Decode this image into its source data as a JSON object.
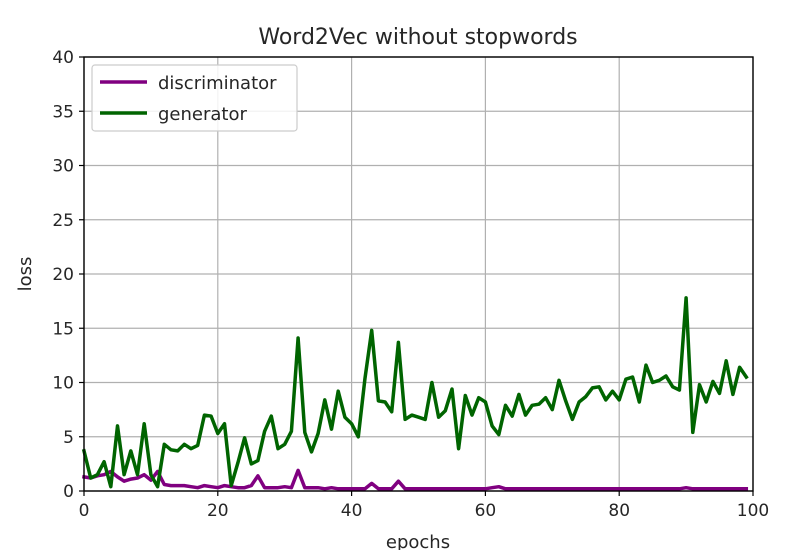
{
  "chart_data": {
    "type": "line",
    "title": "Word2Vec without stopwords",
    "xlabel": "epochs",
    "ylabel": "loss",
    "xlim": [
      0,
      100
    ],
    "ylim": [
      0,
      40
    ],
    "xticks": [
      "0",
      "20",
      "40",
      "60",
      "80",
      "100"
    ],
    "yticks": [
      "0",
      "5",
      "10",
      "15",
      "20",
      "25",
      "30",
      "35",
      "40"
    ],
    "grid": true,
    "legend_position": "top-left",
    "series": [
      {
        "name": "discriminator",
        "color": "#800080",
        "x": [
          0,
          1,
          2,
          3,
          4,
          5,
          6,
          7,
          8,
          9,
          10,
          11,
          12,
          13,
          14,
          15,
          16,
          17,
          18,
          19,
          20,
          21,
          22,
          23,
          24,
          25,
          26,
          27,
          28,
          29,
          30,
          31,
          32,
          33,
          34,
          35,
          36,
          37,
          38,
          39,
          40,
          41,
          42,
          43,
          44,
          45,
          46,
          47,
          48,
          49,
          50,
          51,
          52,
          53,
          54,
          55,
          56,
          57,
          58,
          59,
          60,
          61,
          62,
          63,
          64,
          65,
          66,
          67,
          68,
          69,
          70,
          71,
          72,
          73,
          74,
          75,
          76,
          77,
          78,
          79,
          80,
          81,
          82,
          83,
          84,
          85,
          86,
          87,
          88,
          89,
          90,
          91,
          92,
          93,
          94,
          95,
          96,
          97,
          98,
          99
        ],
        "y": [
          1.3,
          1.2,
          1.4,
          1.5,
          1.8,
          1.3,
          0.9,
          1.1,
          1.2,
          1.5,
          1.0,
          1.8,
          0.6,
          0.5,
          0.5,
          0.5,
          0.4,
          0.3,
          0.5,
          0.4,
          0.3,
          0.5,
          0.4,
          0.3,
          0.3,
          0.5,
          1.4,
          0.3,
          0.3,
          0.3,
          0.4,
          0.3,
          1.9,
          0.3,
          0.3,
          0.3,
          0.2,
          0.3,
          0.2,
          0.2,
          0.2,
          0.2,
          0.2,
          0.7,
          0.2,
          0.2,
          0.2,
          0.9,
          0.2,
          0.2,
          0.2,
          0.2,
          0.2,
          0.2,
          0.2,
          0.2,
          0.2,
          0.2,
          0.2,
          0.2,
          0.2,
          0.3,
          0.4,
          0.2,
          0.2,
          0.2,
          0.2,
          0.2,
          0.2,
          0.2,
          0.2,
          0.2,
          0.2,
          0.2,
          0.2,
          0.2,
          0.2,
          0.2,
          0.2,
          0.2,
          0.2,
          0.2,
          0.2,
          0.2,
          0.2,
          0.2,
          0.2,
          0.2,
          0.2,
          0.2,
          0.3,
          0.2,
          0.2,
          0.2,
          0.2,
          0.2,
          0.2,
          0.2,
          0.2,
          0.2
        ]
      },
      {
        "name": "generator",
        "color": "#006400",
        "x": [
          0,
          1,
          2,
          3,
          4,
          5,
          6,
          7,
          8,
          9,
          10,
          11,
          12,
          13,
          14,
          15,
          16,
          17,
          18,
          19,
          20,
          21,
          22,
          23,
          24,
          25,
          26,
          27,
          28,
          29,
          30,
          31,
          32,
          33,
          34,
          35,
          36,
          37,
          38,
          39,
          40,
          41,
          42,
          43,
          44,
          45,
          46,
          47,
          48,
          49,
          50,
          51,
          52,
          53,
          54,
          55,
          56,
          57,
          58,
          59,
          60,
          61,
          62,
          63,
          64,
          65,
          66,
          67,
          68,
          69,
          70,
          71,
          72,
          73,
          74,
          75,
          76,
          77,
          78,
          79,
          80,
          81,
          82,
          83,
          84,
          85,
          86,
          87,
          88,
          89,
          90,
          91,
          92,
          93,
          94,
          95,
          96,
          97,
          98,
          99
        ],
        "y": [
          3.7,
          1.2,
          1.5,
          2.7,
          0.4,
          6.0,
          1.5,
          3.7,
          1.5,
          6.2,
          1.5,
          0.4,
          4.3,
          3.8,
          3.7,
          4.3,
          3.9,
          4.2,
          7.0,
          6.9,
          5.3,
          6.2,
          0.5,
          2.6,
          4.9,
          2.5,
          2.8,
          5.5,
          6.9,
          3.9,
          4.3,
          5.5,
          14.1,
          5.4,
          3.6,
          5.3,
          8.4,
          5.7,
          9.2,
          6.8,
          6.2,
          5.0,
          10.4,
          14.8,
          8.3,
          8.2,
          7.3,
          13.7,
          6.6,
          7.0,
          6.8,
          6.6,
          10.0,
          6.8,
          7.4,
          9.4,
          3.9,
          8.8,
          7.0,
          8.6,
          8.2,
          6.0,
          5.2,
          7.9,
          6.9,
          8.9,
          7.0,
          7.9,
          8.0,
          8.6,
          7.5,
          10.2,
          8.3,
          6.6,
          8.2,
          8.7,
          9.5,
          9.6,
          8.4,
          9.2,
          8.4,
          10.3,
          10.5,
          8.2,
          11.6,
          10.0,
          10.2,
          10.6,
          9.6,
          9.3,
          17.8,
          5.4,
          9.8,
          8.2,
          10.1,
          9.0,
          12.0,
          8.9,
          11.4,
          10.5
        ]
      }
    ]
  }
}
